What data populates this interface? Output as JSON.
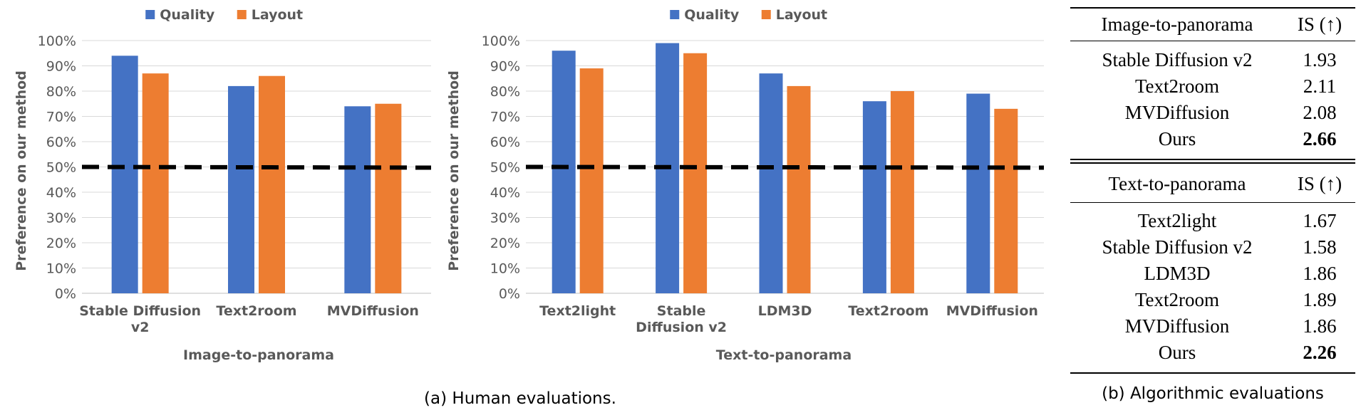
{
  "chart_data": [
    {
      "type": "bar",
      "categories": [
        "Stable Diffusion v2",
        "Text2room",
        "MVDiffusion"
      ],
      "category_lines": [
        [
          "Stable Diffusion",
          "v2"
        ],
        [
          "Text2room"
        ],
        [
          "MVDiffusion"
        ]
      ],
      "series": [
        {
          "name": "Quality",
          "color": "#4472C4",
          "values": [
            94,
            82,
            74
          ]
        },
        {
          "name": "Layout",
          "color": "#ED7D31",
          "values": [
            87,
            86,
            75
          ]
        }
      ],
      "xlabel": "Image-to-panorama",
      "ylabel": "Preference on our method",
      "ylim": [
        0,
        100
      ],
      "yticks": [
        "0%",
        "10%",
        "20%",
        "30%",
        "40%",
        "50%",
        "60%",
        "70%",
        "80%",
        "90%",
        "100%"
      ],
      "reference_line": 50,
      "grid": true,
      "legend": "top-center"
    },
    {
      "type": "bar",
      "categories": [
        "Text2light",
        "Stable Diffusion v2",
        "LDM3D",
        "Text2room",
        "MVDiffusion"
      ],
      "category_lines": [
        [
          "Text2light"
        ],
        [
          "Stable",
          "Diffusion v2"
        ],
        [
          "LDM3D"
        ],
        [
          "Text2room"
        ],
        [
          "MVDiffusion"
        ]
      ],
      "series": [
        {
          "name": "Quality",
          "color": "#4472C4",
          "values": [
            96,
            99,
            87,
            76,
            79
          ]
        },
        {
          "name": "Layout",
          "color": "#ED7D31",
          "values": [
            89,
            95,
            82,
            80,
            73
          ]
        }
      ],
      "xlabel": "Text-to-panorama",
      "ylabel": "Preference on our method",
      "ylim": [
        0,
        100
      ],
      "yticks": [
        "0%",
        "10%",
        "20%",
        "30%",
        "40%",
        "50%",
        "60%",
        "70%",
        "80%",
        "90%",
        "100%"
      ],
      "reference_line": 50,
      "grid": true,
      "legend": "top-center"
    }
  ],
  "caption_a": "(a) Human evaluations.",
  "table": {
    "sections": [
      {
        "header": [
          "Image-to-panorama",
          "IS (↑)"
        ],
        "rows": [
          {
            "method": "Stable Diffusion v2",
            "is": "1.93",
            "bold": false
          },
          {
            "method": "Text2room",
            "is": "2.11",
            "bold": false
          },
          {
            "method": "MVDiffusion",
            "is": "2.08",
            "bold": false
          },
          {
            "method": "Ours",
            "is": "2.66",
            "bold": true
          }
        ]
      },
      {
        "header": [
          "Text-to-panorama",
          "IS (↑)"
        ],
        "rows": [
          {
            "method": "Text2light",
            "is": "1.67",
            "bold": false
          },
          {
            "method": "Stable Diffusion v2",
            "is": "1.58",
            "bold": false
          },
          {
            "method": "LDM3D",
            "is": "1.86",
            "bold": false
          },
          {
            "method": "Text2room",
            "is": "1.89",
            "bold": false
          },
          {
            "method": "MVDiffusion",
            "is": "1.86",
            "bold": false
          },
          {
            "method": "Ours",
            "is": "2.26",
            "bold": true
          }
        ]
      }
    ],
    "caption": "(b) Algorithmic evaluations"
  }
}
